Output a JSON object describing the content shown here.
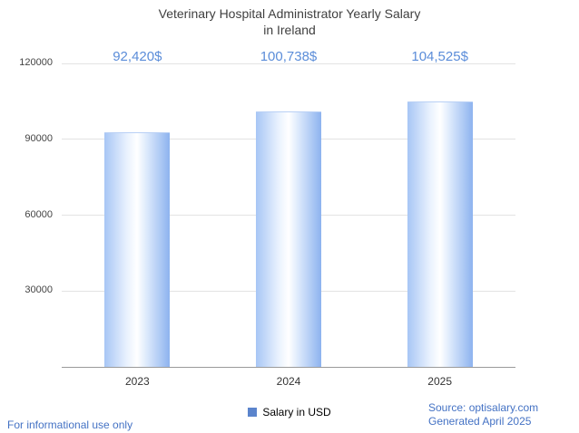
{
  "title": {
    "line1": "Veterinary Hospital Administrator Yearly Salary",
    "line2": "in Ireland"
  },
  "chart_data": {
    "type": "bar",
    "title": "Veterinary Hospital Administrator Yearly Salary in Ireland",
    "categories": [
      "2023",
      "2024",
      "2025"
    ],
    "values": [
      92420,
      100738,
      104525
    ],
    "value_labels": [
      "92,420$",
      "100,738$",
      "104,525$"
    ],
    "series_name": "Salary in USD",
    "xlabel": "",
    "ylabel": "",
    "ylim": [
      0,
      120000
    ],
    "yticks": [
      30000,
      60000,
      90000,
      120000
    ],
    "grid": true,
    "legend_position": "bottom"
  },
  "legend": {
    "label": "Salary in USD"
  },
  "footer": {
    "left": "For informational use only",
    "source": "Source: optisalary.com",
    "generated": "Generated April 2025"
  },
  "colors": {
    "value_label": "#5b8dd9",
    "footer_text": "#4472c4",
    "legend_marker": "#5b84cc",
    "bar_left": "#a7c6f5",
    "bar_right": "#8db3ef",
    "gridline": "#e3e3e3"
  }
}
